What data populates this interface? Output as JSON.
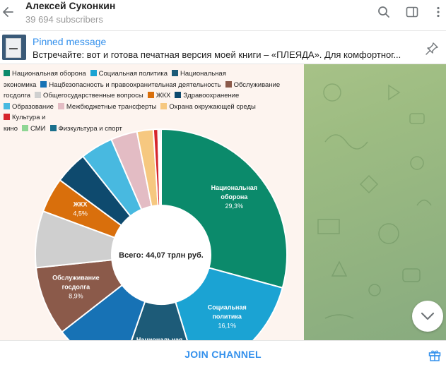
{
  "channel": {
    "name": "Алексей Суконкин",
    "subscribers": "39 694 subscribers"
  },
  "header_icons": [
    "back-icon",
    "search-icon",
    "sidebar-toggle-icon",
    "more-vertical-icon"
  ],
  "pinned": {
    "title": "Pinned message",
    "text": "Встречайте: вот и готова печатная версия моей книги – «ПЛЕЯДА».  Для комфортног..."
  },
  "join_label": "JOIN CHANNEL",
  "chart_data": {
    "type": "pie",
    "variant": "donut",
    "center_label": "Всего: 44,07 трлн руб.",
    "legend_lines": [
      [
        {
          "label": "Национальная оборона",
          "color": "#0b8a6b"
        },
        {
          "label": "Социальная политика",
          "color": "#1ba3d3"
        },
        {
          "label": "Национальная",
          "color": "#1d5b78"
        }
      ],
      [
        {
          "label": "экономика",
          "color": null
        },
        {
          "label": "Нацбезопасность и правоохранительная деятельность",
          "color": "#1772b5"
        },
        {
          "label": "Обслуживание",
          "color": "#8b5a4a"
        }
      ],
      [
        {
          "label": "госдолга",
          "color": null
        },
        {
          "label": "Общегосударственные вопросы",
          "color": "#cfcfcf"
        },
        {
          "label": "ЖКХ",
          "color": "#d96f0c"
        },
        {
          "label": "Здравоохранение",
          "color": "#0e4a6e"
        }
      ],
      [
        {
          "label": "Образование",
          "color": "#48b9e0"
        },
        {
          "label": "Межбюджетные трансферты",
          "color": "#e3bcc4"
        },
        {
          "label": "Охрана окружающей среды",
          "color": "#f6c880"
        },
        {
          "label": "Культура и",
          "color": "#d6252c"
        }
      ],
      [
        {
          "label": "кино",
          "color": null
        },
        {
          "label": "СМИ",
          "color": "#8fd694"
        },
        {
          "label": "Физкультура и спорт",
          "color": "#1a6f8c"
        }
      ]
    ],
    "slices": [
      {
        "name": "Национальная оборона",
        "value": 29.3,
        "label_lines": [
          "Национальная",
          "оборона",
          "29,3%"
        ],
        "color": "#0b8a6b"
      },
      {
        "name": "Социальная политика",
        "value": 16.1,
        "label_lines": [
          "Социальная",
          "политика",
          "16,1%"
        ],
        "color": "#1ba3d3"
      },
      {
        "name": "Национальная экономика",
        "value": 10.0,
        "label_lines": [
          "Национальная",
          "экономика"
        ],
        "color": "#1d5b78"
      },
      {
        "name": "Нацбезопасность и правоохранительная деятельность",
        "value": 9.2,
        "label_lines": [],
        "color": "#1772b5"
      },
      {
        "name": "Обслуживание госдолга",
        "value": 8.9,
        "label_lines": [
          "Обслуживание",
          "госдолга",
          "8,9%"
        ],
        "color": "#8b5a4a"
      },
      {
        "name": "Общегосударственные вопросы",
        "value": 7.3,
        "label_lines": [],
        "color": "#cfcfcf"
      },
      {
        "name": "ЖКХ",
        "value": 4.5,
        "label_lines": [
          "ЖКХ",
          "4,5%"
        ],
        "color": "#d96f0c"
      },
      {
        "name": "Здравоохранение",
        "value": 4.2,
        "label_lines": [],
        "color": "#0e4a6e"
      },
      {
        "name": "Образование",
        "value": 4.2,
        "label_lines": [],
        "color": "#48b9e0"
      },
      {
        "name": "Межбюджетные трансферты",
        "value": 3.4,
        "label_lines": [],
        "color": "#e3bcc4"
      },
      {
        "name": "Охрана окружающей среды",
        "value": 2.1,
        "label_lines": [],
        "color": "#f6c880"
      },
      {
        "name": "Культура и кино",
        "value": 0.6,
        "label_lines": [],
        "color": "#d6252c"
      },
      {
        "name": "СМИ",
        "value": 0.2,
        "label_lines": [],
        "color": "#8fd694"
      },
      {
        "name": "Физкультура и спорт",
        "value": 0.2,
        "label_lines": [],
        "color": "#1a6f8c"
      }
    ]
  }
}
